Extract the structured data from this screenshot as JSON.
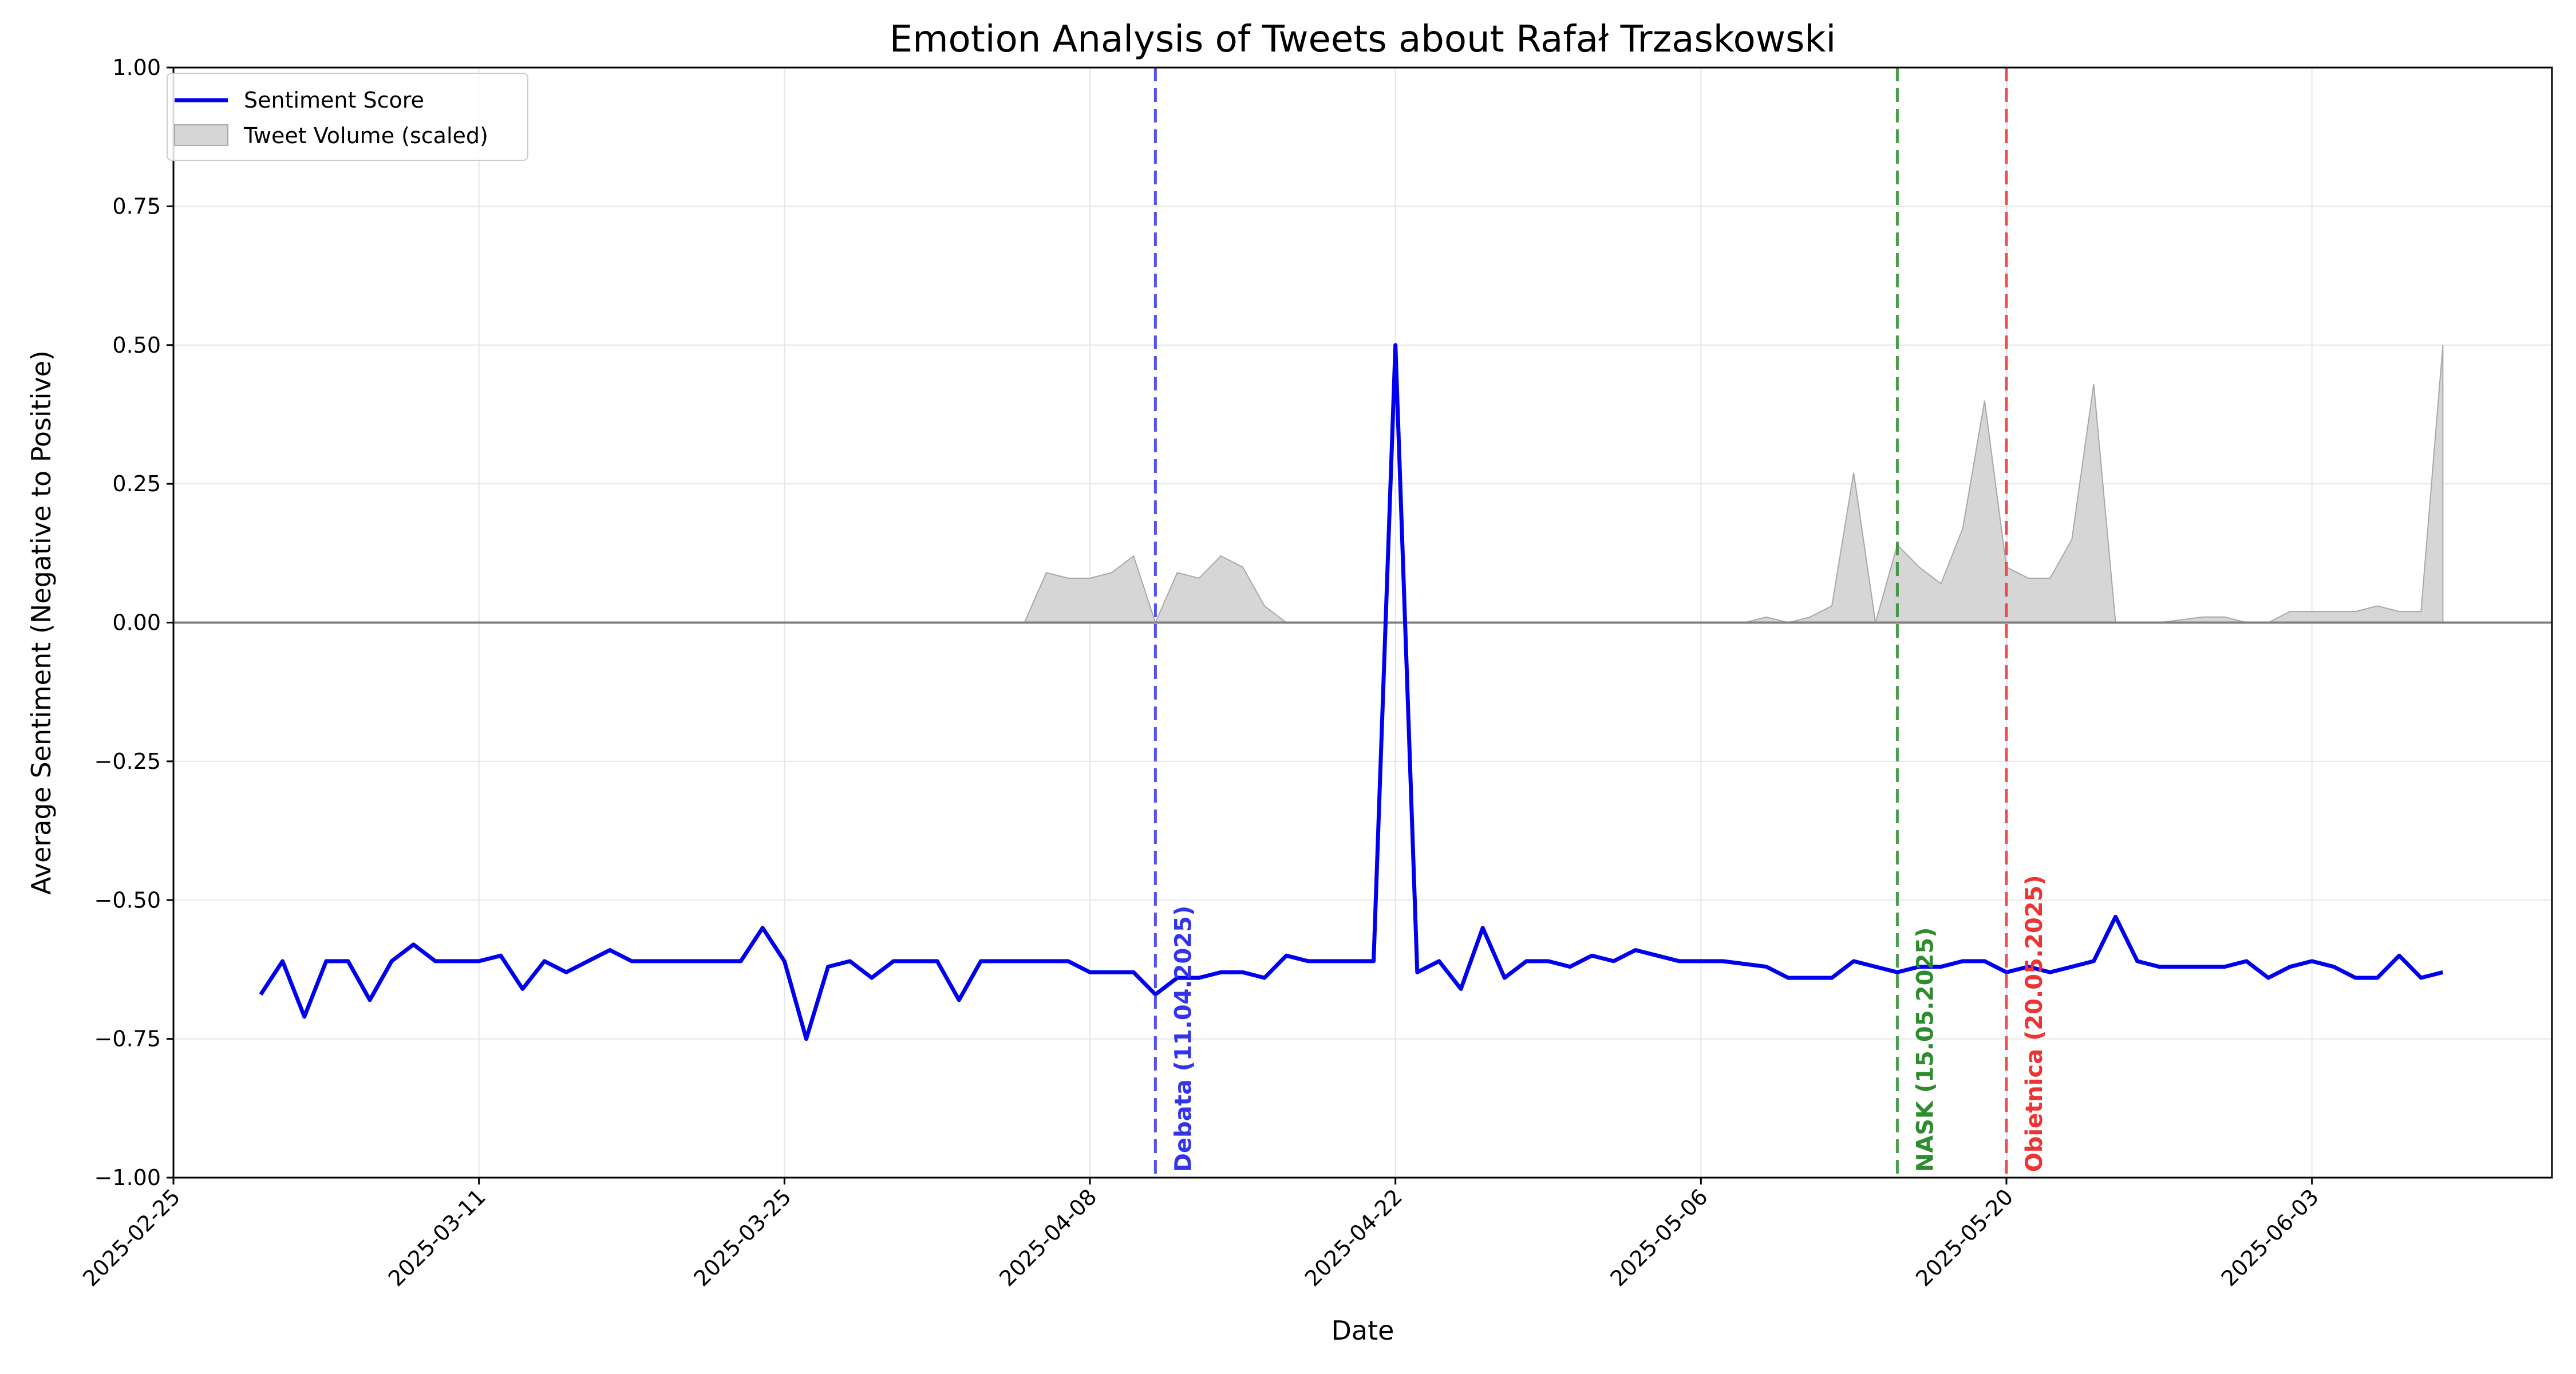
{
  "chart_data": {
    "type": "line",
    "title": "Emotion Analysis of Tweets about Rafał Trzaskowski",
    "xlabel": "Date",
    "ylabel": "Average Sentiment (Negative to Positive)",
    "ylim": [
      -1.0,
      1.0
    ],
    "xlim": [
      "2025-02-25",
      "2025-06-14"
    ],
    "grid": true,
    "legend_position": "top-left",
    "x_ticks": [
      "2025-02-25",
      "2025-03-11",
      "2025-03-25",
      "2025-04-08",
      "2025-04-22",
      "2025-05-06",
      "2025-05-20",
      "2025-06-03"
    ],
    "y_ticks": [
      "1.00",
      "0.75",
      "0.50",
      "0.25",
      "0.00",
      "−0.25",
      "−0.50",
      "−0.75",
      "−1.00"
    ],
    "y_tick_values": [
      1.0,
      0.75,
      0.5,
      0.25,
      0.0,
      -0.25,
      -0.5,
      -0.75,
      -1.0
    ],
    "colors": {
      "sentiment": "#0000ee",
      "volume_fill": "#d6d6d6",
      "volume_edge": "#a8a8a8",
      "zero_line": "#808080",
      "grid": "#e6e6e6"
    },
    "series": [
      {
        "name": "Sentiment Score",
        "kind": "line",
        "x": [
          "2025-03-01",
          "2025-03-02",
          "2025-03-03",
          "2025-03-04",
          "2025-03-05",
          "2025-03-06",
          "2025-03-07",
          "2025-03-08",
          "2025-03-09",
          "2025-03-10",
          "2025-03-11",
          "2025-03-12",
          "2025-03-13",
          "2025-03-14",
          "2025-03-15",
          "2025-03-16",
          "2025-03-17",
          "2025-03-18",
          "2025-03-19",
          "2025-03-20",
          "2025-03-21",
          "2025-03-22",
          "2025-03-23",
          "2025-03-24",
          "2025-03-25",
          "2025-03-26",
          "2025-03-27",
          "2025-03-28",
          "2025-03-29",
          "2025-03-30",
          "2025-03-31",
          "2025-04-01",
          "2025-04-02",
          "2025-04-03",
          "2025-04-04",
          "2025-04-05",
          "2025-04-06",
          "2025-04-07",
          "2025-04-08",
          "2025-04-09",
          "2025-04-10",
          "2025-04-11",
          "2025-04-12",
          "2025-04-13",
          "2025-04-14",
          "2025-04-15",
          "2025-04-16",
          "2025-04-17",
          "2025-04-18",
          "2025-04-19",
          "2025-04-20",
          "2025-04-21",
          "2025-04-22",
          "2025-04-23",
          "2025-04-24",
          "2025-04-25",
          "2025-04-26",
          "2025-04-27",
          "2025-04-28",
          "2025-04-29",
          "2025-04-30",
          "2025-05-01",
          "2025-05-02",
          "2025-05-03",
          "2025-05-04",
          "2025-05-05",
          "2025-05-07",
          "2025-05-09",
          "2025-05-10",
          "2025-05-12",
          "2025-05-13",
          "2025-05-14",
          "2025-05-15",
          "2025-05-16",
          "2025-05-17",
          "2025-05-18",
          "2025-05-19",
          "2025-05-20",
          "2025-05-21",
          "2025-05-22",
          "2025-05-23",
          "2025-05-24",
          "2025-05-25",
          "2025-05-26",
          "2025-05-27",
          "2025-05-28",
          "2025-05-29",
          "2025-05-30",
          "2025-05-31",
          "2025-06-01",
          "2025-06-02",
          "2025-06-03",
          "2025-06-04",
          "2025-06-05",
          "2025-06-06",
          "2025-06-07",
          "2025-06-08",
          "2025-06-09"
        ],
        "values": [
          -0.67,
          -0.61,
          -0.71,
          -0.61,
          -0.61,
          -0.68,
          -0.61,
          -0.58,
          -0.61,
          -0.61,
          -0.61,
          -0.6,
          -0.66,
          -0.61,
          -0.63,
          -0.61,
          -0.59,
          -0.61,
          -0.61,
          -0.61,
          -0.61,
          -0.61,
          -0.61,
          -0.55,
          -0.61,
          -0.75,
          -0.62,
          -0.61,
          -0.64,
          -0.61,
          -0.61,
          -0.61,
          -0.68,
          -0.61,
          -0.61,
          -0.61,
          -0.61,
          -0.61,
          -0.63,
          -0.63,
          -0.63,
          -0.67,
          -0.64,
          -0.64,
          -0.63,
          -0.63,
          -0.64,
          -0.6,
          -0.61,
          -0.61,
          -0.61,
          -0.61,
          0.5,
          -0.63,
          -0.61,
          -0.66,
          -0.55,
          -0.64,
          -0.61,
          -0.61,
          -0.62,
          -0.6,
          -0.61,
          -0.59,
          -0.6,
          -0.61,
          -0.61,
          -0.62,
          -0.64,
          -0.64,
          -0.61,
          -0.62,
          -0.63,
          -0.62,
          -0.62,
          -0.61,
          -0.61,
          -0.63,
          -0.62,
          -0.63,
          -0.62,
          -0.61,
          -0.53,
          -0.61,
          -0.62,
          -0.62,
          -0.62,
          -0.62,
          -0.61,
          -0.64,
          -0.62,
          -0.61,
          -0.62,
          -0.64,
          -0.64,
          -0.6,
          -0.64,
          -0.63
        ]
      },
      {
        "name": "Tweet Volume (scaled)",
        "kind": "area",
        "x": [
          "2025-03-01",
          "2025-04-05",
          "2025-04-06",
          "2025-04-07",
          "2025-04-08",
          "2025-04-09",
          "2025-04-10",
          "2025-04-11",
          "2025-04-12",
          "2025-04-13",
          "2025-04-14",
          "2025-04-15",
          "2025-04-16",
          "2025-04-17",
          "2025-04-18",
          "2025-05-08",
          "2025-05-09",
          "2025-05-10",
          "2025-05-11",
          "2025-05-12",
          "2025-05-13",
          "2025-05-14",
          "2025-05-15",
          "2025-05-16",
          "2025-05-17",
          "2025-05-18",
          "2025-05-19",
          "2025-05-20",
          "2025-05-21",
          "2025-05-22",
          "2025-05-23",
          "2025-05-24",
          "2025-05-25",
          "2025-05-27",
          "2025-05-29",
          "2025-05-30",
          "2025-05-31",
          "2025-06-01",
          "2025-06-02",
          "2025-06-03",
          "2025-06-04",
          "2025-06-05",
          "2025-06-06",
          "2025-06-07",
          "2025-06-08",
          "2025-06-09"
        ],
        "values": [
          0.0,
          0.0,
          0.09,
          0.08,
          0.08,
          0.09,
          0.12,
          0.0,
          0.09,
          0.08,
          0.12,
          0.1,
          0.03,
          0.0,
          0.0,
          0.0,
          0.01,
          0.0,
          0.01,
          0.03,
          0.27,
          0.0,
          0.14,
          0.1,
          0.07,
          0.17,
          0.4,
          0.1,
          0.08,
          0.08,
          0.15,
          0.43,
          0.0,
          0.0,
          0.01,
          0.01,
          0.0,
          0.0,
          0.02,
          0.02,
          0.02,
          0.02,
          0.03,
          0.02,
          0.02,
          0.5
        ]
      }
    ],
    "events": [
      {
        "label": "Debata (11.04.2025)",
        "date": "2025-04-11",
        "color": "#3333ee"
      },
      {
        "label": "NASK (15.05.2025)",
        "date": "2025-05-15",
        "color": "#2e8b2e"
      },
      {
        "label": "Obietnica (20.05.2025)",
        "date": "2025-05-20",
        "color": "#ee3333"
      }
    ]
  }
}
